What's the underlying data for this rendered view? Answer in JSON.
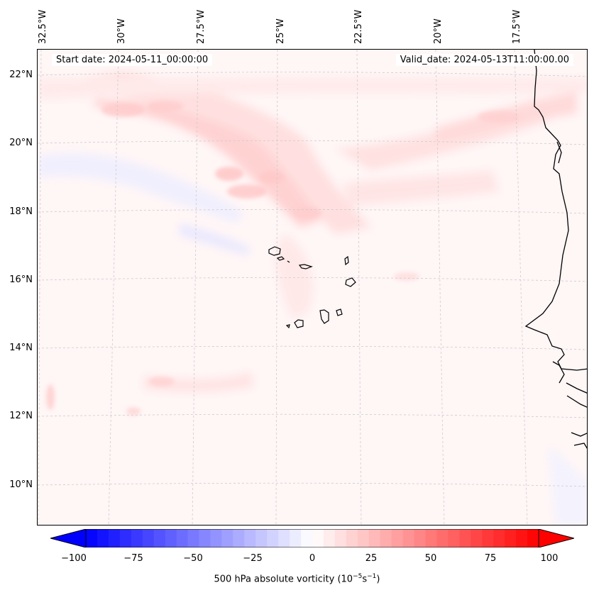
{
  "map": {
    "lon_labels": [
      "32.5°W",
      "30°W",
      "27.5°W",
      "25°W",
      "22.5°W",
      "20°W",
      "17.5°W"
    ],
    "lat_labels": [
      "22°N",
      "20°N",
      "18°N",
      "16°N",
      "14°N",
      "12°N",
      "10°N"
    ],
    "start_date": "Start date: 2024-05-11_00:00:00",
    "valid_date": "Valid_date: 2024-05-13T11:00:00.00",
    "features": [
      "Cape Verde islands",
      "West African coastline (Mauritania, Senegal, The Gambia, Guinea-Bissau)"
    ],
    "field": "500 hPa absolute vorticity",
    "colormap": "bwr",
    "colors": {
      "negative": "#0000ff",
      "zero": "#ffffff",
      "positive": "#ff0000"
    }
  },
  "colorbar": {
    "ticks": [
      "−100",
      "−75",
      "−50",
      "−25",
      "0",
      "25",
      "50",
      "75",
      "100"
    ],
    "range": [
      -100,
      100
    ],
    "label_main": "500 hPa absolute vorticity (10",
    "label_sup1": "−5",
    "label_mid": "s",
    "label_sup2": "−1",
    "label_end": ")"
  }
}
